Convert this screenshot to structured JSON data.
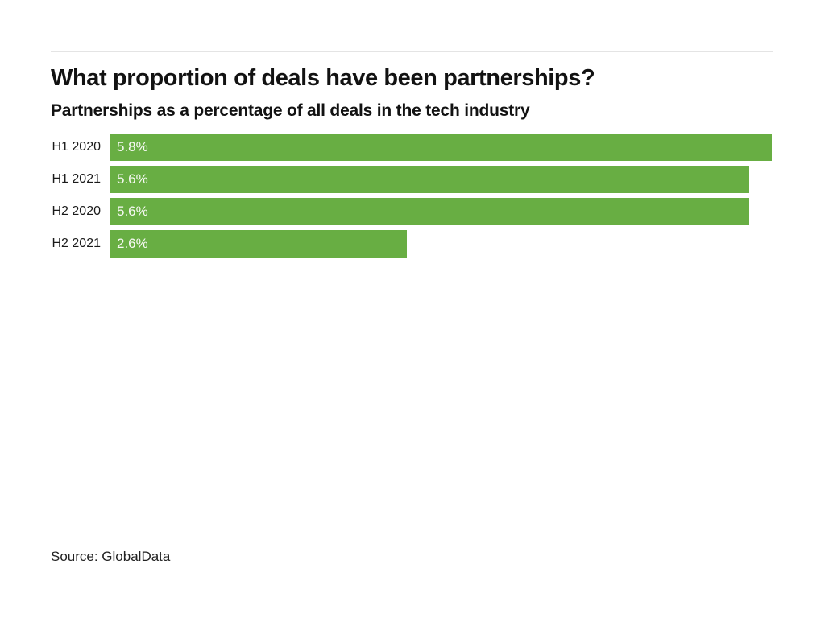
{
  "chart_data": {
    "type": "bar",
    "orientation": "horizontal",
    "title": "What proportion of deals have been partnerships?",
    "subtitle": "Partnerships as a percentage of all deals in the tech industry",
    "categories": [
      "H1 2020",
      "H1 2021",
      "H2 2020",
      "H2 2021"
    ],
    "values": [
      5.8,
      5.6,
      5.6,
      2.6
    ],
    "value_labels": [
      "5.8%",
      "5.6%",
      "5.6%",
      "2.6%"
    ],
    "xlabel": "",
    "ylabel": "",
    "xlim": [
      0,
      5.8
    ],
    "grid": false,
    "legend": "none",
    "bar_color": "#68ae43",
    "value_label_color": "#f7f9f4",
    "source": "Source: GlobalData"
  }
}
